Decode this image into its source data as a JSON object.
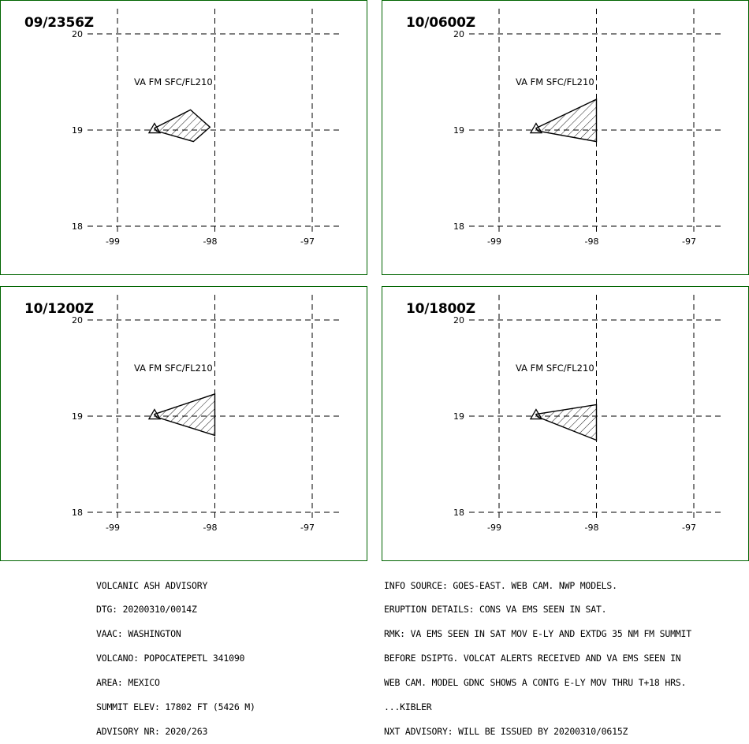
{
  "panels": [
    {
      "time": "09/2356Z",
      "layer": "VA FM SFC/FL210",
      "lat_labels": [
        "20",
        "19",
        "18"
      ],
      "lon_labels": [
        "-99",
        "-98",
        "-97"
      ],
      "ash_polygon": [
        [
          -98.62,
          19.02
        ],
        [
          -98.25,
          19.21
        ],
        [
          -98.05,
          19.03
        ],
        [
          -98.22,
          18.88
        ],
        [
          -98.6,
          18.99
        ]
      ]
    },
    {
      "time": "10/0600Z",
      "layer": "VA FM SFC/FL210",
      "lat_labels": [
        "20",
        "19",
        "18"
      ],
      "lon_labels": [
        "-99",
        "-98",
        "-97"
      ],
      "ash_polygon": [
        [
          -98.62,
          19.02
        ],
        [
          -98.0,
          19.32
        ],
        [
          -98.0,
          18.88
        ],
        [
          -98.6,
          18.99
        ]
      ]
    },
    {
      "time": "10/1200Z",
      "layer": "VA FM SFC/FL210",
      "lat_labels": [
        "20",
        "19",
        "18"
      ],
      "lon_labels": [
        "-99",
        "-98",
        "-97"
      ],
      "ash_polygon": [
        [
          -98.62,
          19.02
        ],
        [
          -98.0,
          19.23
        ],
        [
          -98.0,
          18.8
        ],
        [
          -98.6,
          18.99
        ]
      ]
    },
    {
      "time": "10/1800Z",
      "layer": "VA FM SFC/FL210",
      "lat_labels": [
        "20",
        "19",
        "18"
      ],
      "lon_labels": [
        "-99",
        "-98",
        "-97"
      ],
      "ash_polygon": [
        [
          -98.62,
          19.02
        ],
        [
          -98.0,
          19.12
        ],
        [
          -98.0,
          18.75
        ],
        [
          -98.6,
          18.99
        ]
      ]
    }
  ],
  "footer_left": [
    "VOLCANIC ASH ADVISORY",
    "DTG: 20200310/0014Z",
    "VAAC: WASHINGTON",
    "VOLCANO: POPOCATEPETL 341090",
    "AREA: MEXICO",
    "SUMMIT ELEV: 17802 FT (5426 M)",
    "ADVISORY NR: 2020/263"
  ],
  "footer_right": [
    "INFO SOURCE: GOES-EAST. WEB CAM. NWP MODELS.",
    "ERUPTION DETAILS: CONS VA EMS SEEN IN SAT.",
    "RMK: VA EMS SEEN IN SAT MOV E-LY AND EXTDG 35 NM FM SUMMIT",
    "BEFORE DSIPTG. VOLCAT ALERTS RECEIVED AND VA EMS SEEN IN",
    "WEB CAM. MODEL GDNC SHOWS A CONTG E-LY MOV THRU T+18 HRS.",
    "...KIBLER",
    "NXT ADVISORY: WILL BE ISSUED BY 20200310/0615Z"
  ],
  "volcano_location": [
    -98.62,
    19.02
  ],
  "colors": {
    "panel_border": "#006400",
    "grid": "#000000",
    "ash_fill": "#ffffff",
    "hatch": "#000000"
  },
  "icons": {
    "volcano": "volcano-triangle-icon"
  }
}
